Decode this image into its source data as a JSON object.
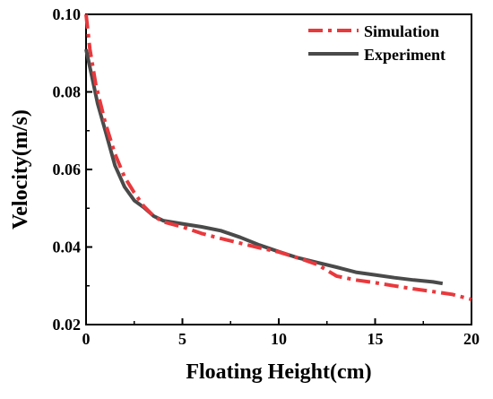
{
  "chart_data": {
    "type": "line",
    "title": "",
    "xlabel": "Floating Height(cm)",
    "ylabel": "Velocity(m/s)",
    "xlim": [
      0,
      20
    ],
    "ylim": [
      0.02,
      0.1
    ],
    "xticks": [
      0,
      5,
      10,
      15,
      20
    ],
    "yticks": [
      0.02,
      0.04,
      0.06,
      0.08,
      0.1
    ],
    "xtick_labels": [
      "0",
      "5",
      "10",
      "15",
      "20"
    ],
    "ytick_labels": [
      "0.02",
      "0.04",
      "0.06",
      "0.08",
      "0.10"
    ],
    "grid": false,
    "legend_position": "top-right",
    "series": [
      {
        "name": "Simulation",
        "color": "#e8393d",
        "line_style": "dash-dot",
        "x": [
          0,
          0.2,
          0.5,
          1,
          1.5,
          2,
          2.5,
          3,
          3.5,
          4,
          5,
          6,
          7,
          8,
          9,
          10,
          11,
          12,
          13,
          14,
          15,
          16,
          17,
          18,
          19,
          20
        ],
        "y": [
          0.1,
          0.091,
          0.082,
          0.072,
          0.064,
          0.058,
          0.054,
          0.0505,
          0.048,
          0.0465,
          0.0452,
          0.0435,
          0.0422,
          0.041,
          0.0398,
          0.0387,
          0.0372,
          0.0355,
          0.0325,
          0.0315,
          0.0308,
          0.03,
          0.0292,
          0.0285,
          0.0278,
          0.0265
        ]
      },
      {
        "name": "Experiment",
        "color": "#4a4a4a",
        "line_style": "solid",
        "x": [
          0,
          0.3,
          0.6,
          1,
          1.5,
          2,
          2.5,
          3,
          3.5,
          4,
          5,
          6,
          7,
          8,
          9,
          10,
          11,
          12,
          13,
          14,
          15,
          16,
          17,
          18,
          18.5
        ],
        "y": [
          0.091,
          0.084,
          0.077,
          0.07,
          0.061,
          0.0555,
          0.052,
          0.0502,
          0.048,
          0.0468,
          0.046,
          0.0452,
          0.0442,
          0.0425,
          0.0405,
          0.0388,
          0.0372,
          0.036,
          0.0348,
          0.0335,
          0.0328,
          0.0321,
          0.0315,
          0.031,
          0.0306
        ]
      }
    ]
  }
}
